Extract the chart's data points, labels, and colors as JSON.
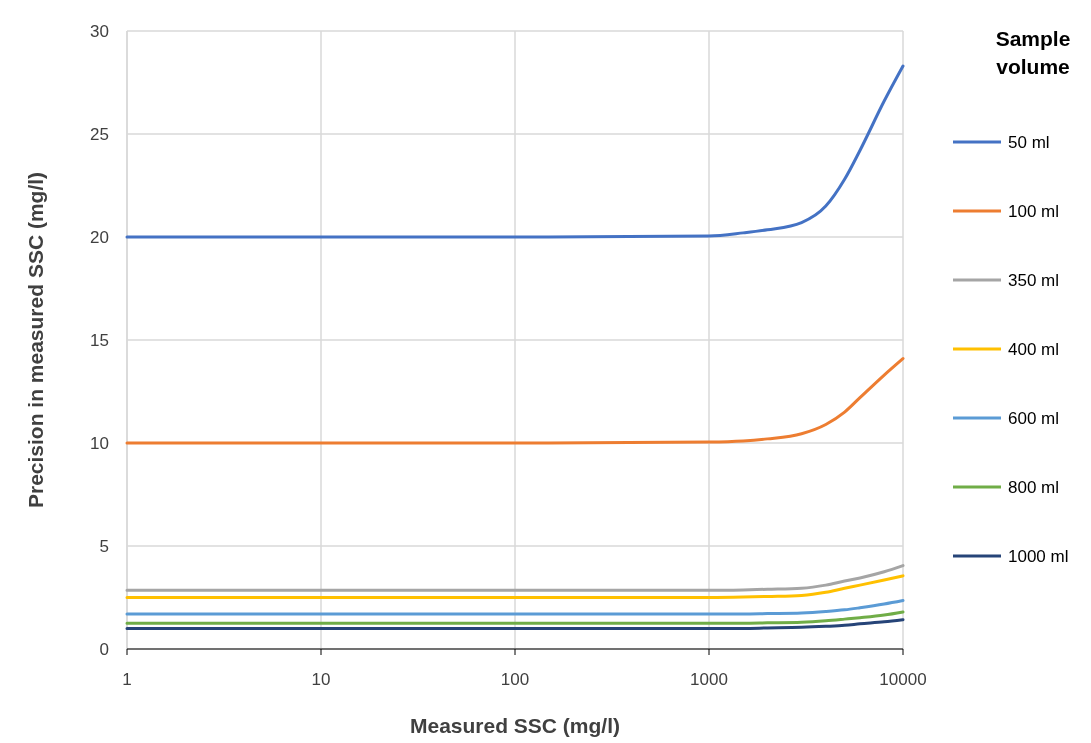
{
  "chart_data": {
    "type": "line",
    "xlabel": "Measured SSC (mg/l)",
    "ylabel": "Precision in measured SSC (mg/l)",
    "legend_title": "Sample volume",
    "log": "x",
    "x": [
      1,
      10,
      100,
      1000,
      1500,
      2000,
      3000,
      4000,
      5000,
      6000,
      8000,
      10000
    ],
    "xlim": [
      1,
      10000
    ],
    "xticks": [
      1,
      10,
      100,
      1000,
      10000
    ],
    "ylim": [
      0,
      30
    ],
    "yticks": [
      0,
      5,
      10,
      15,
      20,
      25,
      30
    ],
    "grid": true,
    "legend": "right",
    "marker": "none",
    "line_style": "solid",
    "series": [
      {
        "name": "50 ml",
        "color": "#4472c4",
        "values": [
          20,
          20,
          20,
          20.05,
          20.2,
          20.35,
          20.7,
          21.5,
          22.8,
          24.2,
          26.6,
          28.3
        ]
      },
      {
        "name": "100 ml",
        "color": "#ed7d31",
        "values": [
          10,
          10,
          10,
          10.05,
          10.1,
          10.2,
          10.45,
          10.9,
          11.5,
          12.2,
          13.3,
          14.1
        ]
      },
      {
        "name": "350 ml",
        "color": "#a5a5a5",
        "values": [
          2.85,
          2.85,
          2.85,
          2.85,
          2.87,
          2.9,
          2.95,
          3.1,
          3.3,
          3.45,
          3.75,
          4.05
        ]
      },
      {
        "name": "400 ml",
        "color": "#ffc000",
        "values": [
          2.5,
          2.5,
          2.5,
          2.5,
          2.52,
          2.55,
          2.6,
          2.75,
          2.95,
          3.1,
          3.35,
          3.55
        ]
      },
      {
        "name": "600 ml",
        "color": "#5b9bd5",
        "values": [
          1.7,
          1.7,
          1.7,
          1.7,
          1.7,
          1.72,
          1.75,
          1.82,
          1.9,
          2,
          2.18,
          2.35
        ]
      },
      {
        "name": "800 ml",
        "color": "#70ad47",
        "values": [
          1.25,
          1.25,
          1.25,
          1.25,
          1.25,
          1.27,
          1.3,
          1.37,
          1.45,
          1.52,
          1.65,
          1.8
        ]
      },
      {
        "name": "1000 ml",
        "color": "#264478",
        "values": [
          1,
          1,
          1,
          1,
          1,
          1.02,
          1.05,
          1.1,
          1.15,
          1.22,
          1.32,
          1.42
        ]
      }
    ]
  }
}
